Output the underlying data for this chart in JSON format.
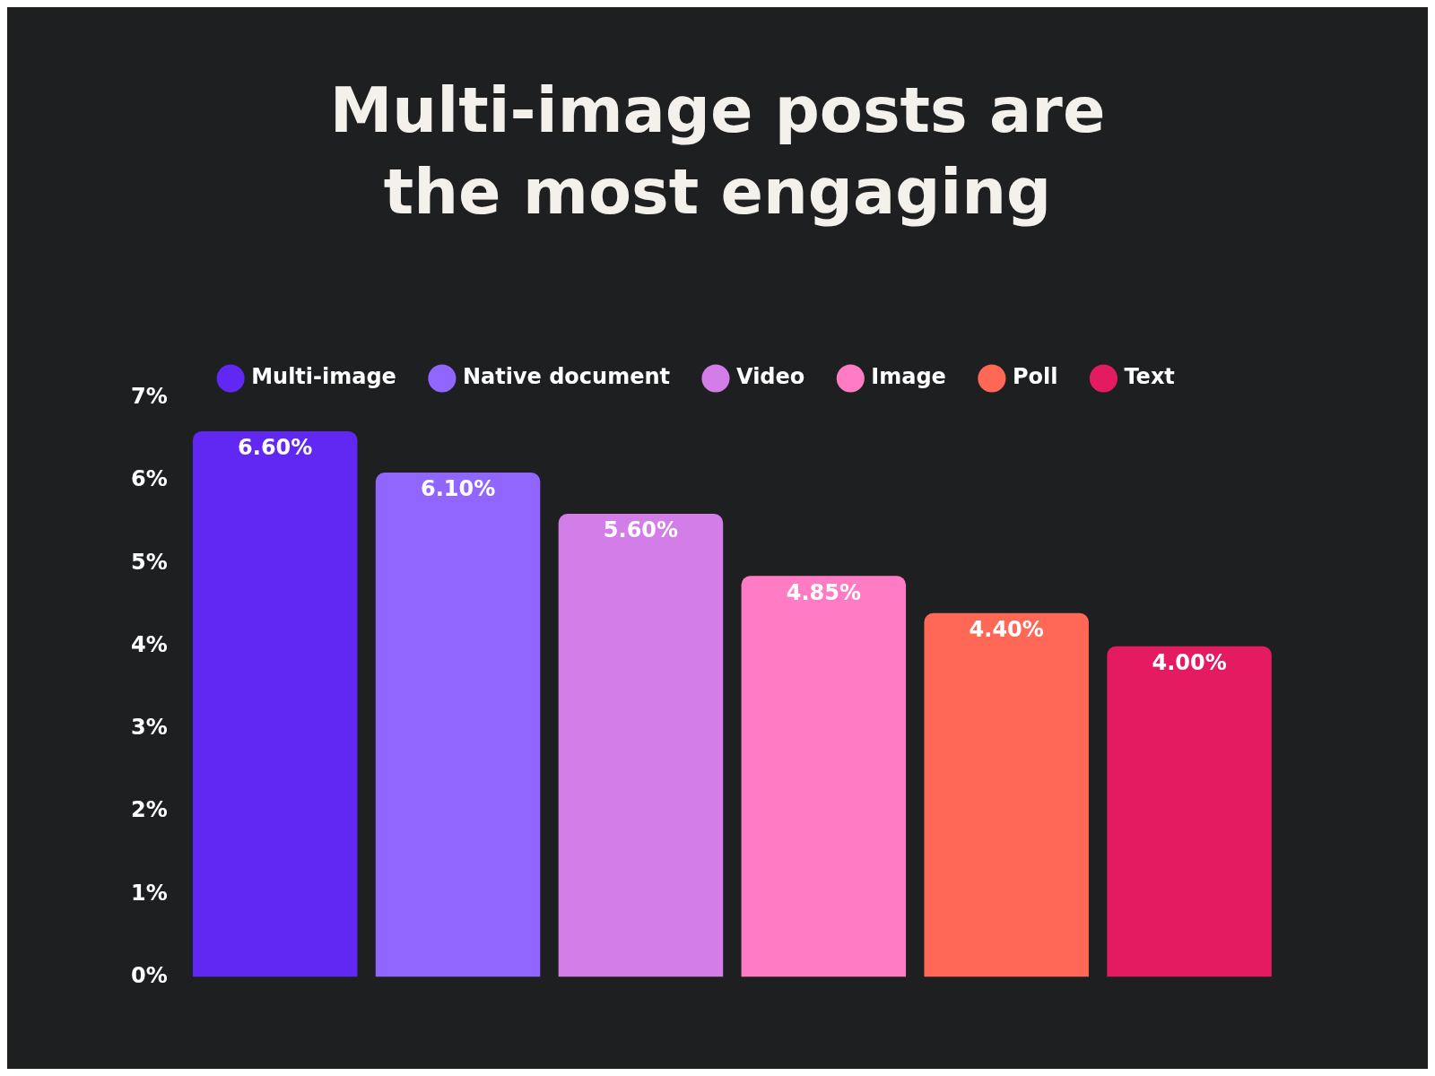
{
  "chart_data": {
    "type": "bar",
    "title": "Multi-image posts are the most engaging",
    "categories": [
      null,
      null,
      null,
      null,
      null,
      null
    ],
    "stacked": true,
    "series": [
      {
        "name": "Multi-image",
        "color": "#6228f3",
        "values": [
          6.6,
          null,
          null,
          null,
          null,
          null
        ],
        "value_labels": [
          "6.60%",
          null,
          null,
          null,
          null,
          null
        ]
      },
      {
        "name": "Native document",
        "color": "#9166ff",
        "values": [
          null,
          6.1,
          null,
          null,
          null,
          null
        ],
        "value_labels": [
          null,
          "6.10%",
          null,
          null,
          null,
          null
        ]
      },
      {
        "name": "Video",
        "color": "#d37de9",
        "values": [
          null,
          null,
          5.6,
          null,
          null,
          null
        ],
        "value_labels": [
          null,
          null,
          "5.60%",
          null,
          null,
          null
        ]
      },
      {
        "name": "Image",
        "color": "#ff7bc4",
        "values": [
          null,
          null,
          null,
          4.85,
          null,
          null
        ],
        "value_labels": [
          null,
          null,
          null,
          "4.85%",
          null,
          null
        ]
      },
      {
        "name": "Poll",
        "color": "#ff6757",
        "values": [
          null,
          null,
          null,
          null,
          4.4,
          null
        ],
        "value_labels": [
          null,
          null,
          null,
          null,
          "4.40%",
          null
        ]
      },
      {
        "name": "Text",
        "color": "#e41b60",
        "values": [
          null,
          null,
          null,
          null,
          null,
          4.0
        ],
        "value_labels": [
          null,
          null,
          null,
          null,
          null,
          "4.00%"
        ]
      }
    ],
    "ylim": [
      0,
      7
    ],
    "yticks": [
      {
        "value": 0,
        "label": "0%"
      },
      {
        "value": 1,
        "label": "1%"
      },
      {
        "value": 2,
        "label": "2%"
      },
      {
        "value": 3,
        "label": "3%"
      },
      {
        "value": 4,
        "label": "4%"
      },
      {
        "value": 5,
        "label": "5%"
      },
      {
        "value": 6,
        "label": "6%"
      },
      {
        "value": 7,
        "label": "7%"
      }
    ],
    "grid": false,
    "legend": "top"
  }
}
